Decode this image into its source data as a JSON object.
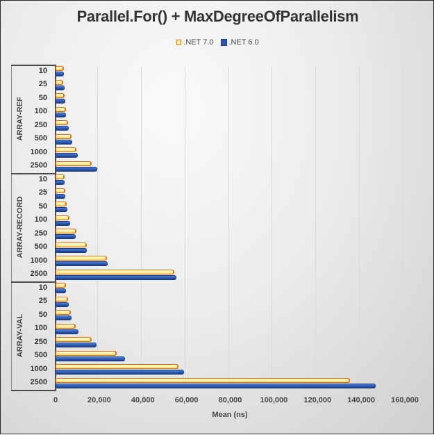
{
  "chart_data": {
    "type": "bar",
    "orientation": "horizontal",
    "title": "Parallel.For() + MaxDegreeOfParallelism",
    "xlabel": "Mean (ns)",
    "ylabel": "",
    "xlim": [
      0,
      160000
    ],
    "x_ticks": [
      "0",
      "20,000",
      "40,000",
      "60,000",
      "80,000",
      "100,000",
      "120,000",
      "140,000",
      "160,000"
    ],
    "legend": [
      ".NET 7.0",
      ".NET 6.0"
    ],
    "legend_position": "top",
    "grid": true,
    "groups": [
      "ARRAY-REF",
      "ARRAY-RECORD",
      "ARRAY-VAL"
    ],
    "categories": [
      "10",
      "25",
      "50",
      "100",
      "250",
      "500",
      "1000",
      "2500"
    ],
    "series": [
      {
        "name": ".NET 7.0",
        "color": "#fff1a0",
        "border": "#d8701a",
        "values": {
          "ARRAY-REF": [
            3800,
            3500,
            4200,
            4700,
            5800,
            7300,
            9400,
            16500
          ],
          "ARRAY-RECORD": [
            4100,
            4400,
            5200,
            6400,
            9700,
            14400,
            23500,
            54300
          ],
          "ARRAY-VAL": [
            4800,
            5600,
            7000,
            9200,
            16500,
            28000,
            56200,
            135000
          ]
        }
      },
      {
        "name": ".NET 6.0",
        "color": "#2f5db4",
        "border": "#1c3a7a",
        "values": {
          "ARRAY-REF": [
            3800,
            4000,
            4500,
            4900,
            6100,
            7600,
            10100,
            19100
          ],
          "ARRAY-RECORD": [
            4000,
            4600,
            5300,
            6600,
            9300,
            14200,
            23900,
            55200
          ],
          "ARRAY-VAL": [
            4700,
            6000,
            7400,
            10500,
            18700,
            31700,
            58700,
            146700
          ]
        }
      }
    ]
  }
}
